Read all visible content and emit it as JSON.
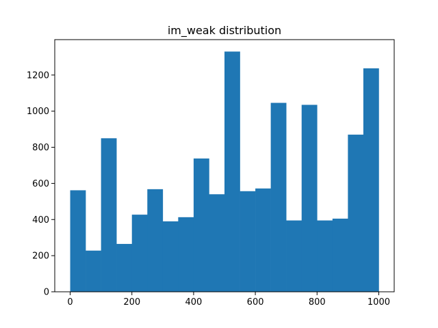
{
  "chart_data": {
    "type": "bar",
    "subtype": "histogram",
    "title": "im_weak distribution",
    "xlabel": "",
    "ylabel": "",
    "bin_edges": [
      0,
      50,
      100,
      150,
      200,
      250,
      300,
      350,
      400,
      450,
      500,
      550,
      600,
      650,
      700,
      750,
      800,
      850,
      900,
      950,
      1000
    ],
    "values": [
      562,
      228,
      850,
      265,
      427,
      568,
      390,
      413,
      738,
      540,
      1330,
      557,
      572,
      1046,
      395,
      1035,
      395,
      405,
      870,
      1237
    ],
    "xlim": [
      -50,
      1050
    ],
    "ylim": [
      0,
      1396
    ],
    "xticks": [
      0,
      200,
      400,
      600,
      800,
      1000
    ],
    "yticks": [
      0,
      200,
      400,
      600,
      800,
      1000,
      1200
    ],
    "bar_color": "#1f77b4",
    "grid": false
  }
}
